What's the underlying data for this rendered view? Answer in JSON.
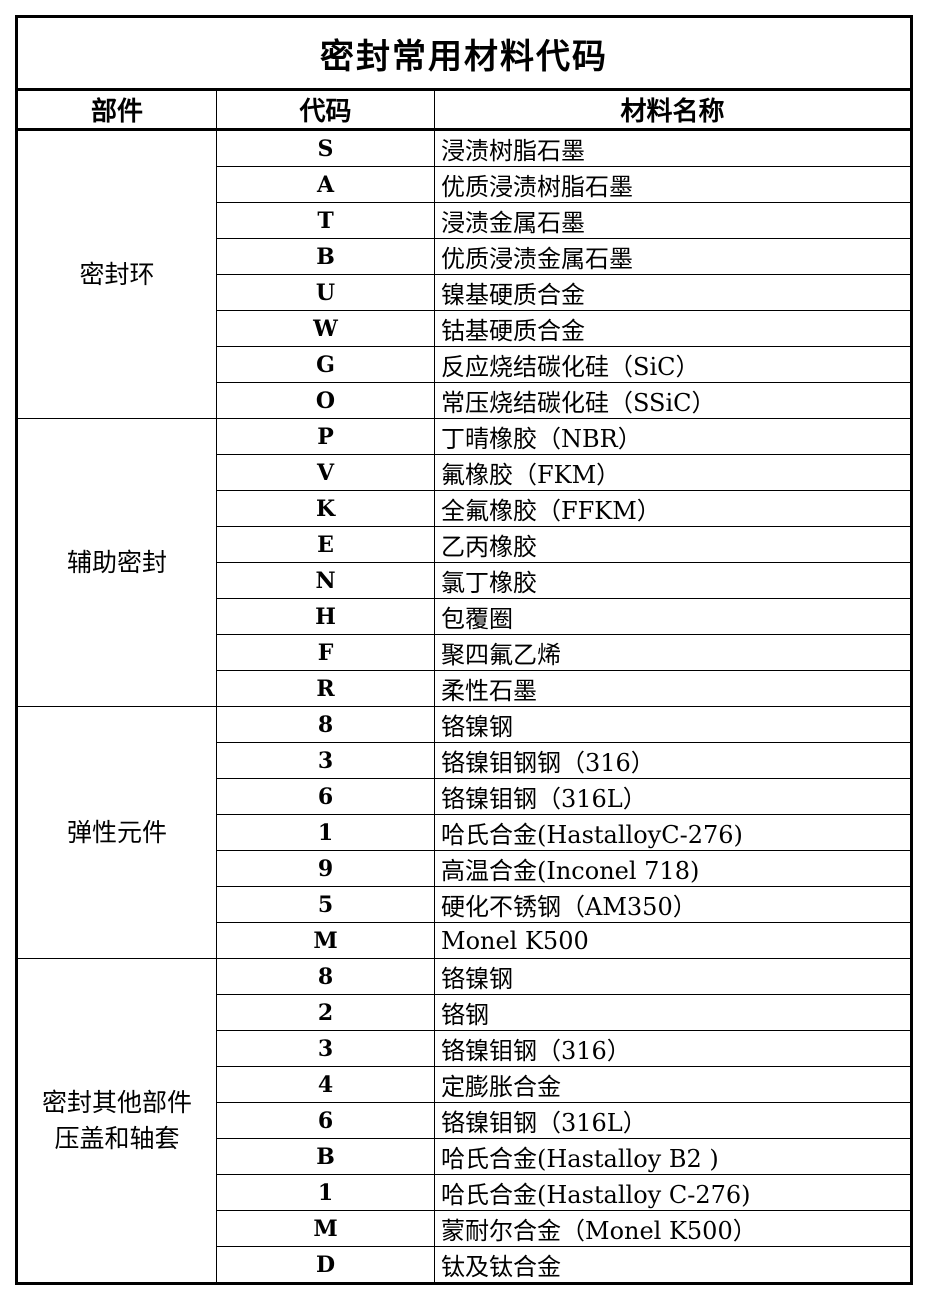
{
  "title": "密封常用材料代码",
  "headers": [
    "部件",
    "代码",
    "材料名称"
  ],
  "groups": [
    {
      "part_lines": [
        "密封环"
      ],
      "rows": [
        [
          "S",
          "浸渍树脂石墨"
        ],
        [
          "A",
          "优质浸渍树脂石墨"
        ],
        [
          "T",
          "浸渍金属石墨"
        ],
        [
          "B",
          "优质浸渍金属石墨"
        ],
        [
          "U",
          "镍基硬质合金"
        ],
        [
          "W",
          "钴基硬质合金"
        ],
        [
          "G",
          "反应烧结碳化硅（SiC）"
        ],
        [
          "O",
          "常压烧结碳化硅（SSiC）"
        ]
      ]
    },
    {
      "part_lines": [
        "辅助密封"
      ],
      "rows": [
        [
          "P",
          "丁晴橡胶（NBR）"
        ],
        [
          "V",
          "氟橡胶（FKM）"
        ],
        [
          "K",
          "全氟橡胶（FFKM）"
        ],
        [
          "E",
          "乙丙橡胶"
        ],
        [
          "N",
          "氯丁橡胶"
        ],
        [
          "H",
          "包覆圈"
        ],
        [
          "F",
          "聚四氟乙烯"
        ],
        [
          "R",
          "柔性石墨"
        ]
      ]
    },
    {
      "part_lines": [
        "弹性元件"
      ],
      "rows": [
        [
          "8",
          "铬镍钢"
        ],
        [
          "3",
          "铬镍钼钢钢（316）"
        ],
        [
          "6",
          "铬镍钼钢（316L）"
        ],
        [
          "1",
          "哈氏合金(HastalloyC-276)"
        ],
        [
          "9",
          "高温合金(Inconel 718)"
        ],
        [
          "5",
          "硬化不锈钢（AM350）"
        ],
        [
          "M",
          "Monel K500"
        ]
      ]
    },
    {
      "part_lines": [
        "密封其他部件",
        "压盖和轴套"
      ],
      "rows": [
        [
          "8",
          "铬镍钢"
        ],
        [
          "2",
          "铬钢"
        ],
        [
          "3",
          "铬镍钼钢（316）"
        ],
        [
          "4",
          "定膨胀合金"
        ],
        [
          "6",
          "铬镍钼钢（316L）"
        ],
        [
          "B",
          "哈氏合金(Hastalloy B2 )"
        ],
        [
          "1",
          "哈氏合金(Hastalloy C-276)"
        ],
        [
          "M",
          "蒙耐尔合金（Monel K500）"
        ],
        [
          "D",
          "钛及钛合金"
        ]
      ]
    }
  ]
}
